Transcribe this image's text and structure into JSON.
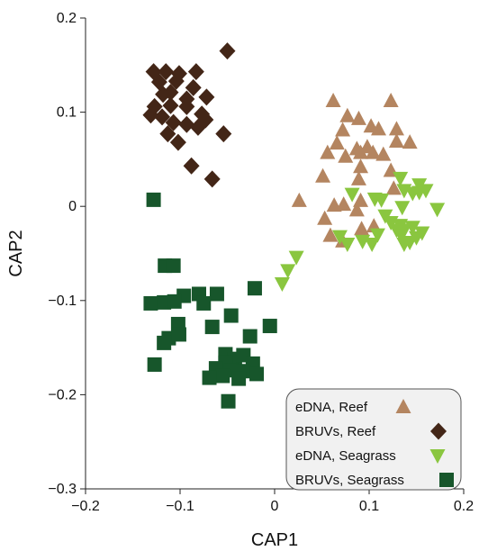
{
  "chart_data": {
    "type": "scatter",
    "xlabel": "CAP1",
    "ylabel": "CAP2",
    "xlim": [
      -0.2,
      0.2
    ],
    "ylim": [
      -0.3,
      0.2
    ],
    "xticks": [
      -0.2,
      -0.1,
      0,
      0.1,
      0.2
    ],
    "yticks": [
      -0.3,
      -0.2,
      -0.1,
      0,
      0.1,
      0.2
    ],
    "xtick_labels": [
      "−0.2",
      "−0.1",
      "0",
      "0.1",
      "0.2"
    ],
    "ytick_labels": [
      "−0.3",
      "−0.2",
      "−0.1",
      "0",
      "0.1",
      "0.2"
    ],
    "grid": false,
    "legend_position": "bottom-right",
    "series": [
      {
        "name": "eDNA, Reef",
        "marker": "triangle-up",
        "color": "#b48560",
        "points": [
          [
            0.062,
            0.112
          ],
          [
            0.089,
            0.093
          ],
          [
            0.123,
            0.112
          ],
          [
            0.077,
            0.096
          ],
          [
            0.072,
            0.081
          ],
          [
            0.102,
            0.085
          ],
          [
            0.066,
            0.067
          ],
          [
            0.11,
            0.082
          ],
          [
            0.087,
            0.061
          ],
          [
            0.129,
            0.082
          ],
          [
            0.129,
            0.069
          ],
          [
            0.143,
            0.068
          ],
          [
            0.056,
            0.057
          ],
          [
            0.075,
            0.053
          ],
          [
            0.091,
            0.057
          ],
          [
            0.104,
            0.057
          ],
          [
            0.091,
            0.042
          ],
          [
            0.115,
            0.055
          ],
          [
            0.098,
            0.063
          ],
          [
            0.051,
            0.032
          ],
          [
            0.089,
            0.029
          ],
          [
            0.123,
            0.038
          ],
          [
            0.126,
            0.019
          ],
          [
            0.091,
            0.006
          ],
          [
            0.063,
            0.001
          ],
          [
            0.073,
            0.002
          ],
          [
            0.026,
            0.006
          ],
          [
            0.053,
            -0.013
          ],
          [
            0.087,
            -0.004
          ],
          [
            0.059,
            -0.031
          ],
          [
            0.072,
            -0.037
          ],
          [
            0.092,
            -0.024
          ],
          [
            0.105,
            -0.021
          ]
        ]
      },
      {
        "name": "BRUVs, Reef",
        "marker": "diamond",
        "color": "#432617",
        "points": [
          [
            -0.05,
            0.165
          ],
          [
            -0.128,
            0.143
          ],
          [
            -0.115,
            0.143
          ],
          [
            -0.101,
            0.141
          ],
          [
            -0.083,
            0.143
          ],
          [
            -0.122,
            0.132
          ],
          [
            -0.104,
            0.133
          ],
          [
            -0.086,
            0.126
          ],
          [
            -0.118,
            0.119
          ],
          [
            -0.11,
            0.121
          ],
          [
            -0.093,
            0.114
          ],
          [
            -0.072,
            0.116
          ],
          [
            -0.127,
            0.106
          ],
          [
            -0.11,
            0.107
          ],
          [
            -0.093,
            0.106
          ],
          [
            -0.077,
            0.098
          ],
          [
            -0.131,
            0.097
          ],
          [
            -0.119,
            0.095
          ],
          [
            -0.107,
            0.089
          ],
          [
            -0.093,
            0.087
          ],
          [
            -0.113,
            0.077
          ],
          [
            -0.073,
            0.092
          ],
          [
            -0.081,
            0.084
          ],
          [
            -0.102,
            0.068
          ],
          [
            -0.054,
            0.077
          ],
          [
            -0.088,
            0.043
          ],
          [
            -0.066,
            0.029
          ]
        ]
      },
      {
        "name": "eDNA, Seagrass",
        "marker": "triangle-down",
        "color": "#8ac63f",
        "points": [
          [
            0.133,
            0.03
          ],
          [
            0.153,
            0.023
          ],
          [
            0.153,
            0.015
          ],
          [
            0.137,
            0.017
          ],
          [
            0.146,
            0.014
          ],
          [
            0.16,
            0.017
          ],
          [
            0.082,
            0.013
          ],
          [
            0.106,
            0.008
          ],
          [
            0.113,
            0.007
          ],
          [
            0.172,
            -0.003
          ],
          [
            0.135,
            -0.001
          ],
          [
            0.117,
            -0.01
          ],
          [
            0.123,
            -0.017
          ],
          [
            0.133,
            -0.02
          ],
          [
            0.129,
            -0.025
          ],
          [
            0.109,
            -0.03
          ],
          [
            0.137,
            -0.025
          ],
          [
            0.146,
            -0.022
          ],
          [
            0.15,
            -0.033
          ],
          [
            0.143,
            -0.038
          ],
          [
            0.134,
            -0.031
          ],
          [
            0.156,
            -0.028
          ],
          [
            0.069,
            -0.032
          ],
          [
            0.077,
            -0.04
          ],
          [
            0.093,
            -0.037
          ],
          [
            0.103,
            -0.04
          ],
          [
            0.137,
            -0.04
          ],
          [
            0.023,
            -0.054
          ],
          [
            0.014,
            -0.068
          ],
          [
            0.008,
            -0.082
          ]
        ]
      },
      {
        "name": "BRUVs, Seagrass",
        "marker": "square",
        "color": "#17562b",
        "points": [
          [
            -0.128,
            0.007
          ],
          [
            -0.116,
            -0.063
          ],
          [
            -0.107,
            -0.063
          ],
          [
            -0.021,
            -0.087
          ],
          [
            -0.096,
            -0.095
          ],
          [
            -0.08,
            -0.093
          ],
          [
            -0.061,
            -0.093
          ],
          [
            -0.131,
            -0.103
          ],
          [
            -0.117,
            -0.102
          ],
          [
            -0.106,
            -0.101
          ],
          [
            -0.075,
            -0.103
          ],
          [
            -0.046,
            -0.116
          ],
          [
            -0.102,
            -0.125
          ],
          [
            -0.005,
            -0.127
          ],
          [
            -0.066,
            -0.128
          ],
          [
            -0.112,
            -0.14
          ],
          [
            -0.101,
            -0.136
          ],
          [
            -0.026,
            -0.138
          ],
          [
            -0.117,
            -0.145
          ],
          [
            -0.052,
            -0.157
          ],
          [
            -0.042,
            -0.162
          ],
          [
            -0.033,
            -0.158
          ],
          [
            -0.052,
            -0.166
          ],
          [
            -0.062,
            -0.172
          ],
          [
            -0.127,
            -0.168
          ],
          [
            -0.023,
            -0.167
          ],
          [
            -0.046,
            -0.174
          ],
          [
            -0.033,
            -0.175
          ],
          [
            -0.055,
            -0.18
          ],
          [
            -0.038,
            -0.183
          ],
          [
            -0.019,
            -0.178
          ],
          [
            -0.069,
            -0.182
          ],
          [
            -0.049,
            -0.207
          ]
        ]
      }
    ]
  }
}
